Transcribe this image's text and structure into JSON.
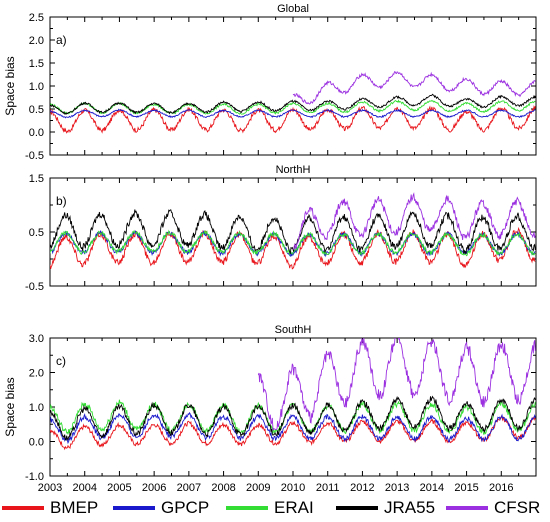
{
  "colors": {
    "BMEP": "#e8151b",
    "GPCP": "#1a1acc",
    "ERAI": "#33dd33",
    "JRA55": "#000000",
    "CFSR": "#9b30e0"
  },
  "legend": [
    {
      "name": "BMEP",
      "color": "#e8151b"
    },
    {
      "name": "GPCP",
      "color": "#1a1acc"
    },
    {
      "name": "ERAI",
      "color": "#33dd33"
    },
    {
      "name": "JRA55",
      "color": "#000000"
    },
    {
      "name": "CFSR",
      "color": "#9b30e0"
    }
  ],
  "x_tick_labels": [
    "2003",
    "2004",
    "2005",
    "2006",
    "2007",
    "2008",
    "2009",
    "2010",
    "2011",
    "2012",
    "2013",
    "2014",
    "2015",
    "2016"
  ],
  "chart_data": [
    {
      "type": "line",
      "title": "Global",
      "panel_label": "a)",
      "ylabel": "Space bias",
      "xlim": [
        2003,
        2017
      ],
      "ylim": [
        -0.5,
        2.5
      ],
      "yticks": [
        -0.5,
        0,
        0.5,
        1,
        1.5,
        2,
        2.5
      ],
      "ytick_labels": [
        "-0.5",
        "0.0",
        "0.5",
        "1.0",
        "1.5",
        "2.0",
        "2.5"
      ],
      "x": [
        "2003",
        "2004",
        "2005",
        "2006",
        "2007",
        "2008",
        "2009",
        "2010",
        "2011",
        "2012",
        "2013",
        "2014",
        "2015",
        "2016"
      ],
      "series": [
        {
          "name": "BMEP",
          "amplitude": 0.22,
          "phase": 0.0,
          "values": [
            0.22,
            0.25,
            0.26,
            0.26,
            0.27,
            0.26,
            0.25,
            0.27,
            0.27,
            0.3,
            0.31,
            0.3,
            0.22,
            0.3
          ]
        },
        {
          "name": "GPCP",
          "amplitude": 0.07,
          "phase": 0.0,
          "values": [
            0.38,
            0.4,
            0.41,
            0.4,
            0.4,
            0.4,
            0.4,
            0.4,
            0.4,
            0.4,
            0.4,
            0.4,
            0.4,
            0.4
          ]
        },
        {
          "name": "ERAI",
          "amplitude": 0.1,
          "phase": 0.0,
          "values": [
            0.5,
            0.52,
            0.52,
            0.5,
            0.5,
            0.5,
            0.5,
            0.52,
            0.52,
            0.55,
            0.57,
            0.58,
            0.52,
            0.57
          ]
        },
        {
          "name": "JRA55",
          "amplitude": 0.1,
          "phase": 0.0,
          "values": [
            0.48,
            0.53,
            0.53,
            0.52,
            0.52,
            0.55,
            0.55,
            0.57,
            0.57,
            0.62,
            0.66,
            0.7,
            0.62,
            0.67
          ]
        },
        {
          "name": "CFSR",
          "amplitude": 0.15,
          "phase": 0.0,
          "values": [
            null,
            null,
            null,
            null,
            null,
            null,
            null,
            0.65,
            0.92,
            1.1,
            1.15,
            1.1,
            1.0,
            0.95
          ]
        }
      ]
    },
    {
      "type": "line",
      "title": "NorthH",
      "panel_label": "b)",
      "ylabel": "",
      "xlim": [
        2003,
        2017
      ],
      "ylim": [
        -0.5,
        1.5
      ],
      "yticks": [
        -0.5,
        0.5,
        1.5
      ],
      "ytick_labels": [
        "-0.5",
        "0.5",
        "1.5"
      ],
      "x": [
        "2003",
        "2004",
        "2005",
        "2006",
        "2007",
        "2008",
        "2009",
        "2010",
        "2011",
        "2012",
        "2013",
        "2014",
        "2015",
        "2016"
      ],
      "series": [
        {
          "name": "BMEP",
          "amplitude": 0.27,
          "phase": 0.45,
          "values": [
            0.12,
            0.18,
            0.2,
            0.2,
            0.2,
            0.2,
            0.18,
            0.12,
            0.18,
            0.2,
            0.22,
            0.22,
            0.15,
            0.25
          ]
        },
        {
          "name": "GPCP",
          "amplitude": 0.18,
          "phase": 0.45,
          "values": [
            0.28,
            0.3,
            0.3,
            0.3,
            0.3,
            0.28,
            0.28,
            0.26,
            0.28,
            0.28,
            0.28,
            0.28,
            0.28,
            0.28
          ]
        },
        {
          "name": "ERAI",
          "amplitude": 0.18,
          "phase": 0.45,
          "values": [
            0.3,
            0.3,
            0.32,
            0.32,
            0.32,
            0.3,
            0.3,
            0.28,
            0.28,
            0.28,
            0.3,
            0.3,
            0.26,
            0.28
          ]
        },
        {
          "name": "JRA55",
          "amplitude": 0.3,
          "phase": 0.45,
          "values": [
            0.5,
            0.52,
            0.55,
            0.55,
            0.55,
            0.5,
            0.48,
            0.45,
            0.48,
            0.48,
            0.52,
            0.55,
            0.45,
            0.5
          ]
        },
        {
          "name": "CFSR",
          "amplitude": 0.32,
          "phase": 0.45,
          "values": [
            null,
            null,
            null,
            null,
            null,
            null,
            null,
            0.45,
            0.75,
            0.75,
            0.8,
            0.85,
            0.7,
            0.75
          ]
        }
      ]
    },
    {
      "type": "line",
      "title": "SouthH",
      "panel_label": "c)",
      "ylabel": "Space bias",
      "xlim": [
        2003,
        2017
      ],
      "ylim": [
        -1.0,
        3.0
      ],
      "yticks": [
        -1,
        0,
        1,
        2,
        3
      ],
      "ytick_labels": [
        "-1.0",
        "0.0",
        "1.0",
        "2.0",
        "3.0"
      ],
      "x": [
        "2003",
        "2004",
        "2005",
        "2006",
        "2007",
        "2008",
        "2009",
        "2010",
        "2011",
        "2012",
        "2013",
        "2014",
        "2015",
        "2016"
      ],
      "series": [
        {
          "name": "BMEP",
          "amplitude": 0.28,
          "phase": 0.0,
          "values": [
            0.05,
            0.15,
            0.2,
            0.2,
            0.25,
            0.2,
            0.2,
            0.25,
            0.25,
            0.3,
            0.3,
            0.3,
            0.25,
            0.4
          ]
        },
        {
          "name": "GPCP",
          "amplitude": 0.32,
          "phase": 0.0,
          "values": [
            0.3,
            0.4,
            0.45,
            0.45,
            0.45,
            0.4,
            0.4,
            0.4,
            0.4,
            0.4,
            0.4,
            0.4,
            0.35,
            0.4
          ]
        },
        {
          "name": "ERAI",
          "amplitude": 0.38,
          "phase": 0.0,
          "values": [
            0.6,
            0.7,
            0.75,
            0.7,
            0.7,
            0.65,
            0.65,
            0.65,
            0.65,
            0.7,
            0.7,
            0.7,
            0.6,
            0.7
          ]
        },
        {
          "name": "JRA55",
          "amplitude": 0.4,
          "phase": 0.0,
          "values": [
            0.45,
            0.55,
            0.6,
            0.65,
            0.65,
            0.6,
            0.6,
            0.65,
            0.65,
            0.75,
            0.8,
            0.85,
            0.7,
            0.8
          ]
        },
        {
          "name": "CFSR",
          "amplitude": 0.8,
          "phase": 0.0,
          "values": [
            null,
            null,
            null,
            null,
            null,
            null,
            1.1,
            1.3,
            1.7,
            2.1,
            2.2,
            2.1,
            1.9,
            2.0
          ]
        }
      ]
    }
  ]
}
